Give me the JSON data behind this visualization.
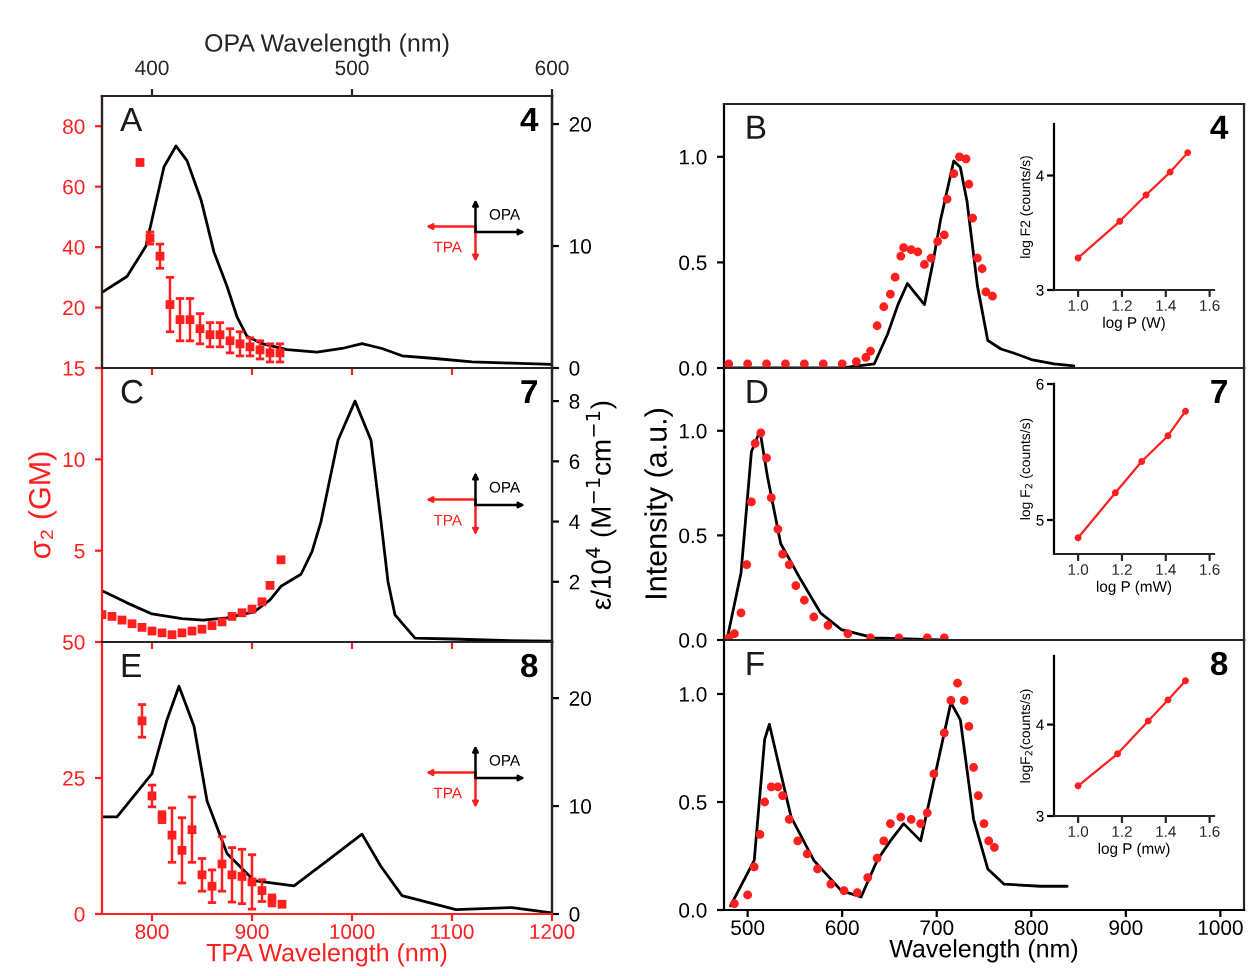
{
  "chart_data": [
    {
      "type": "line",
      "x2label": "OPA Wavelength (nm)",
      "xlim": [
        750,
        1200
      ],
      "xticks": [
        800,
        900,
        1000,
        1100,
        1200
      ],
      "x2lim": [
        375,
        600
      ],
      "x2ticks": [
        400,
        500,
        600
      ],
      "ylim": [
        0,
        90
      ],
      "yticks": [
        20,
        40,
        60,
        80
      ],
      "y2lim": [
        0,
        22.3
      ],
      "y2ticks": [
        0,
        10,
        20
      ],
      "tick_labels": "y",
      "annotations": [
        "A",
        "4",
        "OPA",
        "TPA"
      ],
      "series": [
        {
          "type": "scatter",
          "marker": "square",
          "color": "#ff1f1f",
          "x": [
            788,
            798,
            808,
            818,
            828,
            838,
            848,
            858,
            868,
            878,
            888,
            898,
            908,
            918,
            928
          ],
          "values": [
            68,
            43,
            37,
            21,
            16,
            16,
            13,
            11,
            11,
            9,
            8,
            7,
            6,
            5,
            5
          ],
          "errors": [
            null,
            2,
            4,
            9,
            7,
            7,
            5,
            4,
            4,
            4,
            4,
            3,
            3,
            3,
            3
          ]
        },
        {
          "type": "line",
          "axis": "y2",
          "color": "#000000",
          "x": [
            750,
            775,
            794,
            812,
            824,
            835,
            849,
            862,
            875,
            885,
            895,
            910,
            935,
            965,
            990,
            1010,
            1030,
            1050,
            1080,
            1120,
            1160,
            1200
          ],
          "values": [
            6.2,
            7.5,
            10,
            16.5,
            18.2,
            17,
            13.8,
            9.5,
            6.7,
            4.2,
            2.6,
            2.0,
            1.5,
            1.3,
            1.6,
            2.0,
            1.6,
            1.0,
            0.8,
            0.5,
            0.4,
            0.3
          ]
        }
      ]
    },
    {
      "type": "line",
      "xlim": [
        475,
        1025
      ],
      "xticks": [
        500,
        600,
        700,
        800,
        900,
        1000
      ],
      "ylim": [
        0,
        1.25
      ],
      "yticks": [
        {
          "value": 0,
          "label": "0.0"
        },
        {
          "value": 0.5,
          "label": "0.5"
        },
        {
          "value": 1,
          "label": "1.0"
        }
      ],
      "tick_labels": "y",
      "annotations": [
        "B",
        "4"
      ],
      "series": [
        {
          "type": "scatter",
          "marker": "circle",
          "color": "#ff1f1f",
          "x": [
            480,
            500,
            520,
            540,
            560,
            580,
            600,
            615,
            625,
            630,
            637,
            644,
            651,
            656,
            662,
            665,
            673,
            680,
            687,
            694,
            701,
            708,
            711,
            718,
            724,
            731,
            734,
            738,
            743,
            748,
            752,
            759
          ],
          "values": [
            0.02,
            0.02,
            0.02,
            0.02,
            0.02,
            0.02,
            0.02,
            0.03,
            0.05,
            0.08,
            0.2,
            0.29,
            0.35,
            0.43,
            0.53,
            0.57,
            0.56,
            0.55,
            0.49,
            0.52,
            0.6,
            0.63,
            0.8,
            0.92,
            1.0,
            0.99,
            0.87,
            0.71,
            0.52,
            0.47,
            0.36,
            0.34
          ]
        },
        {
          "type": "line",
          "color": "#000000",
          "x": [
            478,
            600,
            634,
            648,
            659,
            669,
            678,
            687,
            696,
            704,
            718,
            725,
            732,
            743,
            754,
            768,
            782,
            800,
            824,
            845
          ],
          "values": [
            0,
            0,
            0.02,
            0.16,
            0.3,
            0.4,
            0.35,
            0.3,
            0.5,
            0.7,
            0.98,
            0.95,
            0.79,
            0.39,
            0.13,
            0.09,
            0.07,
            0.04,
            0.02,
            0.01
          ]
        }
      ]
    },
    {
      "type": "line",
      "xlabel": "log P (W)",
      "ylabel": "log F2 (counts/s)",
      "xlim": [
        0.89,
        1.62
      ],
      "xticks": [
        {
          "value": 1.0,
          "label": "1.0"
        },
        {
          "value": 1.2,
          "label": "1.2"
        },
        {
          "value": 1.4,
          "label": "1.4"
        },
        {
          "value": 1.6,
          "label": "1.6"
        }
      ],
      "ylim": [
        3,
        4.45
      ],
      "yticks": [
        3,
        4
      ],
      "series": [
        {
          "marker": "circle",
          "color": "#ff1f1f",
          "x": [
            1.0,
            1.19,
            1.31,
            1.42,
            1.5
          ],
          "values": [
            3.28,
            3.6,
            3.83,
            4.03,
            4.2
          ]
        }
      ]
    },
    {
      "type": "line",
      "ylabel": "σ₂ (GM)",
      "y2label": "ε/10$^{4}$ (M$^{−1}$cm$^{−1}$)",
      "xlim": [
        750,
        1200
      ],
      "xticks": [
        800,
        900,
        1000,
        1100,
        1200
      ],
      "ylim": [
        0,
        15
      ],
      "yticks": [
        5,
        10,
        15
      ],
      "y2lim": [
        0,
        9.1
      ],
      "y2ticks": [
        2,
        4,
        6,
        8
      ],
      "tick_labels": "y",
      "annotations": [
        "C",
        "7",
        "OPA",
        "TPA"
      ],
      "series": [
        {
          "type": "scatter",
          "marker": "square",
          "color": "#ff1f1f",
          "x": [
            750,
            760,
            770,
            780,
            790,
            800,
            810,
            820,
            830,
            840,
            850,
            860,
            870,
            880,
            890,
            900,
            910,
            918,
            929
          ],
          "values": [
            1.5,
            1.4,
            1.2,
            1.0,
            0.8,
            0.6,
            0.5,
            0.4,
            0.5,
            0.6,
            0.7,
            0.9,
            1.1,
            1.4,
            1.6,
            1.8,
            2.2,
            3.1,
            4.5
          ]
        },
        {
          "type": "line",
          "axis": "y2",
          "color": "#000000",
          "x": [
            750,
            775,
            800,
            830,
            851,
            875,
            902,
            918,
            929,
            949,
            960,
            969,
            986,
            1003,
            1019,
            1029,
            1036,
            1043,
            1063,
            1100,
            1150,
            1200
          ],
          "values": [
            1.7,
            1.3,
            0.93,
            0.78,
            0.73,
            0.8,
            1.0,
            1.4,
            1.85,
            2.25,
            3.0,
            4.0,
            6.7,
            8.0,
            6.7,
            4.0,
            2.0,
            0.9,
            0.13,
            0.1,
            0.05,
            0.03
          ]
        }
      ]
    },
    {
      "type": "line",
      "ylabel": "Intensity (a.u.)",
      "xlim": [
        475,
        1025
      ],
      "xticks": [
        500,
        600,
        700,
        800,
        900,
        1000
      ],
      "ylim": [
        0,
        1.3
      ],
      "yticks": [
        {
          "value": 0,
          "label": "0.0"
        },
        {
          "value": 0.5,
          "label": "0.5"
        },
        {
          "value": 1,
          "label": "1.0"
        }
      ],
      "tick_labels": "y",
      "annotations": [
        "D",
        "7"
      ],
      "series": [
        {
          "type": "scatter",
          "marker": "circle",
          "color": "#ff1f1f",
          "x": [
            480,
            486,
            493,
            499,
            504,
            508,
            514,
            520,
            525,
            532,
            537,
            544,
            551,
            560,
            570,
            585,
            606,
            630,
            660,
            690,
            708
          ],
          "values": [
            0.01,
            0.03,
            0.13,
            0.36,
            0.66,
            0.94,
            0.99,
            0.87,
            0.68,
            0.53,
            0.41,
            0.36,
            0.26,
            0.19,
            0.11,
            0.07,
            0.03,
            0.01,
            0.01,
            0.01,
            0.01
          ]
        },
        {
          "type": "line",
          "color": "#000000",
          "x": [
            479,
            493,
            504,
            513,
            521,
            535,
            556,
            577,
            599,
            634,
            704
          ],
          "values": [
            0.02,
            0.32,
            0.9,
            1.0,
            0.78,
            0.46,
            0.29,
            0.13,
            0.05,
            0.01,
            0
          ]
        }
      ]
    },
    {
      "type": "line",
      "xlabel": "log P (mW)",
      "ylabel": "log F$_{2}$ (counts/s)",
      "xlim": [
        0.89,
        1.62
      ],
      "xticks": [
        {
          "value": 1.0,
          "label": "1.0"
        },
        {
          "value": 1.2,
          "label": "1.2"
        },
        {
          "value": 1.4,
          "label": "1.4"
        },
        {
          "value": 1.6,
          "label": "1.6"
        }
      ],
      "ylim": [
        4.75,
        6
      ],
      "yticks": [
        5,
        6
      ],
      "series": [
        {
          "marker": "circle",
          "color": "#ff1f1f",
          "x": [
            1.0,
            1.17,
            1.29,
            1.41,
            1.49
          ],
          "values": [
            4.87,
            5.2,
            5.43,
            5.62,
            5.8
          ]
        }
      ]
    },
    {
      "type": "line",
      "xlabel": "TPA Wavelength (nm)",
      "xlim": [
        750,
        1200
      ],
      "xticks": [
        800,
        900,
        1000,
        1100,
        1200
      ],
      "ylim": [
        0,
        50
      ],
      "yticks": [
        0,
        25,
        50
      ],
      "y2lim": [
        0,
        25.2
      ],
      "y2ticks": [
        0,
        10,
        20
      ],
      "annotations": [
        "E",
        "8",
        "OPA",
        "TPA"
      ],
      "series": [
        {
          "type": "scatter",
          "marker": "square",
          "color": "#ff1f1f",
          "x": [
            790,
            800,
            810,
            820,
            830,
            840,
            850,
            860,
            870,
            880,
            890,
            900,
            910,
            920,
            930
          ],
          "values": [
            35.5,
            21.7,
            17.8,
            14.5,
            11.7,
            15.5,
            7.2,
            5.1,
            9.2,
            7.2,
            6.9,
            5.9,
            4.3,
            2.5,
            1.8
          ],
          "errors": [
            3,
            2,
            1,
            5,
            6,
            6,
            3,
            3,
            5,
            5,
            5,
            5,
            2,
            1,
            null
          ]
        },
        {
          "type": "line",
          "axis": "y2",
          "color": "#000000",
          "x": [
            750,
            765,
            800,
            815,
            827,
            842,
            855,
            875,
            902,
            942,
            976,
            1010,
            1029,
            1050,
            1104,
            1160,
            1200
          ],
          "values": [
            9.0,
            9.0,
            13,
            18,
            21.1,
            17.4,
            10.5,
            5.6,
            3.1,
            2.6,
            5,
            7.4,
            4.4,
            1.7,
            0.4,
            0.6,
            0.1
          ]
        }
      ]
    },
    {
      "type": "line",
      "xlabel": "Wavelength (nm)",
      "xlim": [
        475,
        1025
      ],
      "xticks": [
        500,
        600,
        700,
        800,
        900,
        1000
      ],
      "ylim": [
        0,
        1.25
      ],
      "yticks": [
        {
          "value": 0,
          "label": "0.0"
        },
        {
          "value": 0.5,
          "label": "0.5"
        },
        {
          "value": 1,
          "label": "1.0"
        }
      ],
      "annotations": [
        "F",
        "8"
      ],
      "series": [
        {
          "type": "scatter",
          "marker": "circle",
          "color": "#ff1f1f",
          "x": [
            486,
            500,
            507,
            513,
            518,
            525,
            532,
            537,
            544,
            553,
            563,
            574,
            588,
            602,
            616,
            627,
            637,
            644,
            651,
            662,
            673,
            683,
            690,
            697,
            708,
            715,
            722,
            729,
            734,
            739,
            744,
            750,
            755,
            761
          ],
          "values": [
            0.03,
            0.07,
            0.2,
            0.35,
            0.5,
            0.57,
            0.57,
            0.53,
            0.42,
            0.32,
            0.26,
            0.19,
            0.12,
            0.09,
            0.08,
            0.15,
            0.24,
            0.32,
            0.4,
            0.43,
            0.42,
            0.4,
            0.45,
            0.63,
            0.82,
            0.97,
            1.05,
            0.97,
            0.85,
            0.66,
            0.53,
            0.4,
            0.32,
            0.29
          ]
        },
        {
          "type": "line",
          "color": "#000000",
          "x": [
            482,
            507,
            518,
            523,
            532,
            546,
            570,
            599,
            620,
            637,
            651,
            665,
            683,
            697,
            715,
            725,
            739,
            754,
            771,
            810,
            838
          ],
          "values": [
            0.02,
            0.23,
            0.79,
            0.86,
            0.69,
            0.43,
            0.23,
            0.09,
            0.06,
            0.23,
            0.32,
            0.4,
            0.32,
            0.6,
            0.96,
            0.88,
            0.42,
            0.19,
            0.12,
            0.11,
            0.11
          ]
        }
      ]
    },
    {
      "type": "line",
      "xlabel": "log P (mw)",
      "ylabel": "logF$_{2}$(counts/s)",
      "xlim": [
        0.89,
        1.62
      ],
      "xticks": [
        {
          "value": 1.0,
          "label": "1.0"
        },
        {
          "value": 1.2,
          "label": "1.2"
        },
        {
          "value": 1.4,
          "label": "1.4"
        },
        {
          "value": 1.6,
          "label": "1.6"
        }
      ],
      "ylim": [
        3,
        4.75
      ],
      "yticks": [
        3,
        4
      ],
      "series": [
        {
          "marker": "circle",
          "color": "#ff1f1f",
          "x": [
            1.0,
            1.18,
            1.32,
            1.41,
            1.49
          ],
          "values": [
            3.33,
            3.68,
            4.04,
            4.27,
            4.48
          ]
        }
      ]
    }
  ]
}
